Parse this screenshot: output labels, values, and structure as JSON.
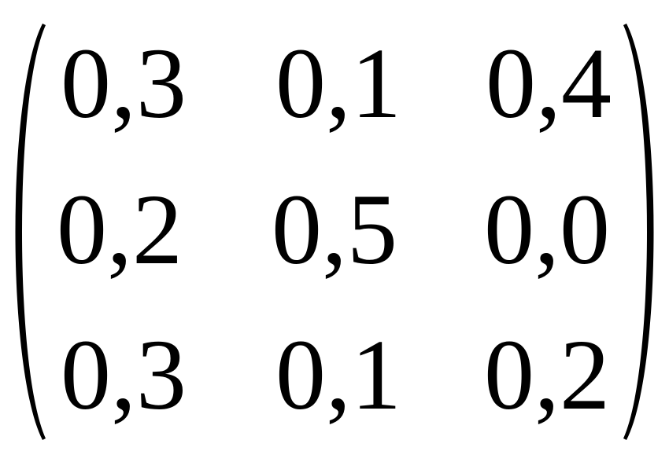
{
  "matrix": {
    "rows": [
      [
        "0,3",
        "0,1",
        "0,4"
      ],
      [
        "0,2",
        "0,5",
        "0,0"
      ],
      [
        "0,3",
        "0,1",
        "0,2"
      ]
    ],
    "delimiters": "parentheses"
  }
}
